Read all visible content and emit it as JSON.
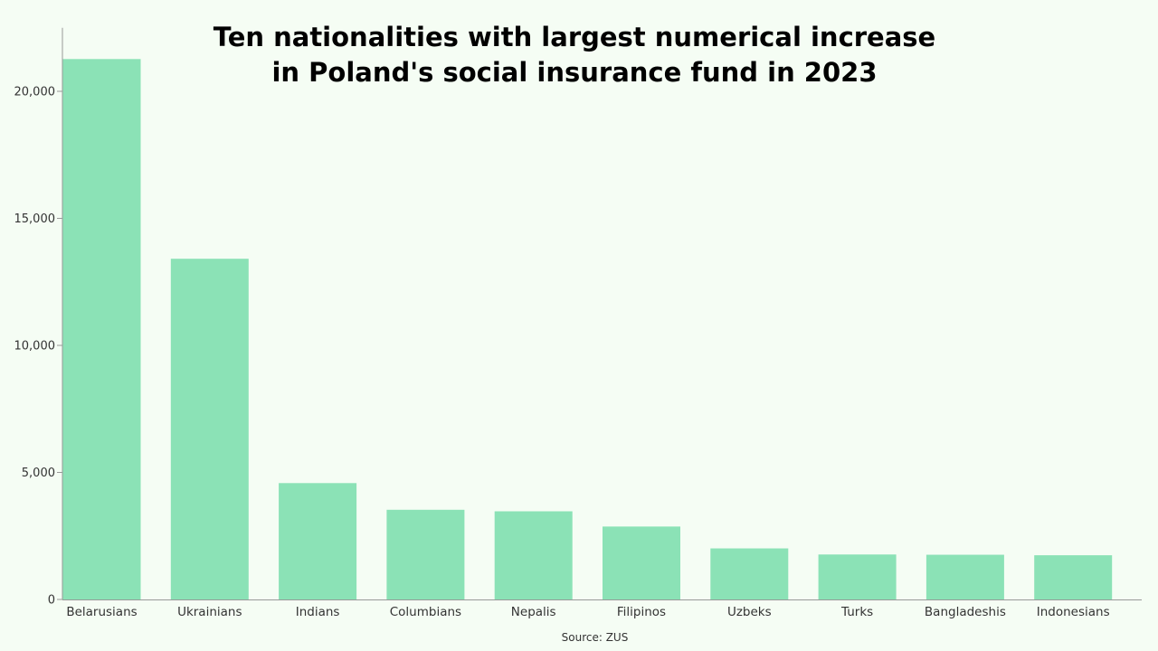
{
  "colors": {
    "background": "#f5fdf4",
    "bar": "#8be2b6",
    "axis": "#999999",
    "text": "#333333",
    "title": "#000000"
  },
  "chart_data": {
    "type": "bar",
    "title_lines": [
      "Ten nationalities with largest numerical increase",
      "in Poland's social insurance fund in 2023"
    ],
    "source": "Source: ZUS",
    "categories": [
      "Belarusians",
      "Ukrainians",
      "Indians",
      "Columbians",
      "Nepalis",
      "Filipinos",
      "Uzbeks",
      "Turks",
      "Bangladeshis",
      "Indonesians"
    ],
    "values": [
      21270,
      13410,
      4580,
      3530,
      3470,
      2870,
      2010,
      1770,
      1760,
      1740
    ],
    "yticks": [
      0,
      5000,
      10000,
      15000,
      20000
    ],
    "ytick_labels": [
      "0",
      "5,000",
      "10,000",
      "15,000",
      "20,000"
    ],
    "ylim": [
      0,
      22500
    ],
    "xlabel": "",
    "ylabel": "",
    "grid": false,
    "legend": "none"
  }
}
